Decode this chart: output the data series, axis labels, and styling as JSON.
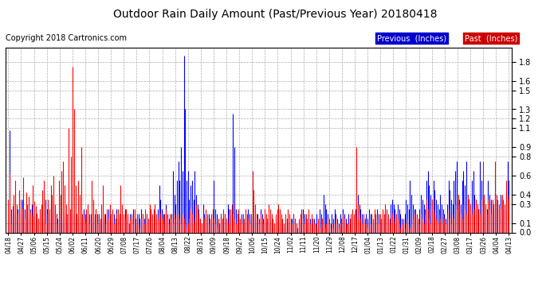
{
  "title": "Outdoor Rain Daily Amount (Past/Previous Year) 20180418",
  "copyright": "Copyright 2018 Cartronics.com",
  "legend_previous": "Previous  (Inches)",
  "legend_past": "Past  (Inches)",
  "line_previous_color": "#0000FF",
  "line_past_color": "#FF0000",
  "background_color": "#FFFFFF",
  "plot_bg_color": "#FFFFFF",
  "grid_color": "#999999",
  "yticks": [
    0.0,
    0.1,
    0.3,
    0.4,
    0.6,
    0.8,
    0.9,
    1.1,
    1.2,
    1.3,
    1.5,
    1.6,
    1.8
  ],
  "ylim": [
    0.0,
    1.95
  ],
  "xtick_labels": [
    "04/18",
    "04/27",
    "05/06",
    "05/15",
    "05/24",
    "06/02",
    "06/11",
    "06/20",
    "06/29",
    "07/08",
    "07/17",
    "07/26",
    "08/04",
    "08/13",
    "08/22",
    "08/31",
    "09/09",
    "09/18",
    "09/27",
    "10/06",
    "10/15",
    "10/24",
    "11/02",
    "11/11",
    "11/20",
    "11/29",
    "12/08",
    "12/17",
    "01/04",
    "01/13",
    "01/22",
    "01/31",
    "02/09",
    "02/18",
    "02/27",
    "03/08",
    "03/17",
    "03/26",
    "04/04",
    "04/13"
  ],
  "past_data": [
    0.35,
    0.62,
    0.1,
    0.28,
    0.4,
    0.55,
    0.3,
    0.2,
    0.45,
    0.35,
    0.25,
    0.58,
    0.15,
    0.42,
    0.3,
    0.38,
    0.22,
    0.18,
    0.5,
    0.33,
    0.28,
    0.2,
    0.15,
    0.25,
    0.3,
    0.45,
    0.55,
    0.1,
    0.2,
    0.35,
    0.25,
    0.5,
    0.4,
    0.6,
    0.3,
    0.2,
    0.1,
    0.55,
    0.4,
    0.65,
    0.75,
    0.5,
    0.3,
    0.2,
    1.1,
    0.25,
    0.8,
    1.75,
    1.3,
    0.5,
    0.2,
    0.55,
    0.4,
    0.9,
    0.2,
    0.15,
    0.1,
    0.25,
    0.3,
    0.1,
    0.2,
    0.55,
    0.35,
    0.2,
    0.25,
    0.1,
    0.2,
    0.15,
    0.3,
    0.5,
    0.2,
    0.1,
    0.25,
    0.15,
    0.3,
    0.2,
    0.25,
    0.1,
    0.15,
    0.2,
    0.25,
    0.2,
    0.5,
    0.3,
    0.2,
    0.15,
    0.25,
    0.2,
    0.1,
    0.15,
    0.2,
    0.1,
    0.25,
    0.15,
    0.2,
    0.1,
    0.05,
    0.15,
    0.2,
    0.1,
    0.25,
    0.2,
    0.15,
    0.3,
    0.25,
    0.2,
    0.25,
    0.3,
    0.2,
    0.15,
    0.25,
    0.2,
    0.15,
    0.1,
    0.2,
    0.25,
    0.15,
    0.1,
    0.2,
    0.15,
    0.1,
    0.2,
    0.15,
    0.25,
    0.2,
    0.15,
    0.1,
    0.2,
    0.15,
    0.1,
    0.05,
    0.1,
    0.15,
    0.25,
    0.2,
    0.15,
    0.1,
    0.3,
    0.2,
    0.25,
    0.15,
    0.1,
    0.2,
    0.15,
    0.25,
    0.2,
    0.1,
    0.15,
    0.2,
    0.25,
    0.15,
    0.1,
    0.05,
    0.15,
    0.1,
    0.2,
    0.15,
    0.25,
    0.2,
    0.15,
    0.1,
    0.2,
    0.25,
    0.3,
    0.2,
    0.15,
    0.1,
    0.2,
    0.25,
    0.15,
    0.1,
    0.2,
    0.15,
    0.25,
    0.2,
    0.15,
    0.1,
    0.2,
    0.65,
    0.45,
    0.3,
    0.2,
    0.15,
    0.1,
    0.2,
    0.15,
    0.1,
    0.25,
    0.2,
    0.15,
    0.3,
    0.25,
    0.2,
    0.15,
    0.1,
    0.2,
    0.25,
    0.3,
    0.25,
    0.2,
    0.15,
    0.1,
    0.2,
    0.15,
    0.25,
    0.2,
    0.15,
    0.1,
    0.2,
    0.15,
    0.1,
    0.05,
    0.15,
    0.2,
    0.25,
    0.15,
    0.1,
    0.2,
    0.15,
    0.25,
    0.1,
    0.2,
    0.15,
    0.1,
    0.05,
    0.1,
    0.15,
    0.05,
    0.1,
    0.15,
    0.1,
    0.05,
    0.1,
    0.15,
    0.1,
    0.05,
    0.1,
    0.05,
    0.1,
    0.15,
    0.1,
    0.05,
    0.1,
    0.15,
    0.2,
    0.15,
    0.1,
    0.05,
    0.1,
    0.15,
    0.2,
    0.25,
    0.2,
    0.15,
    0.9,
    0.3,
    0.2,
    0.15,
    0.1,
    0.2,
    0.15,
    0.1,
    0.05,
    0.15,
    0.1,
    0.2,
    0.15,
    0.25,
    0.2,
    0.15,
    0.1,
    0.2,
    0.15,
    0.25,
    0.2,
    0.3,
    0.25,
    0.2,
    0.15,
    0.1,
    0.2,
    0.15,
    0.1,
    0.2,
    0.15,
    0.1,
    0.05,
    0.1,
    0.15,
    0.05,
    0.1,
    0.15,
    0.1,
    0.05,
    0.1,
    0.15,
    0.2,
    0.25,
    0.2,
    0.15,
    0.1,
    0.2,
    0.15,
    0.1,
    0.2,
    0.35,
    0.25,
    0.15,
    0.1,
    0.35,
    0.25,
    0.2,
    0.15,
    0.1,
    0.2,
    0.15,
    0.1,
    0.2,
    0.15,
    0.1,
    0.2,
    0.25,
    0.15,
    0.1,
    0.2,
    0.15,
    0.3,
    0.25,
    0.4,
    0.3,
    0.2,
    0.15,
    0.3,
    0.25,
    0.2,
    0.4,
    0.35,
    0.3,
    0.2,
    0.35,
    0.25,
    0.35,
    0.3,
    0.25,
    0.2,
    0.35,
    0.75,
    0.4,
    0.3,
    0.2,
    0.35,
    0.25,
    0.2,
    0.35,
    0.3,
    0.75,
    0.4,
    0.35,
    0.3,
    0.25,
    0.4,
    0.35,
    0.3,
    0.55,
    0.4,
    0.35
  ],
  "previous_data": [
    0.15,
    1.08,
    0.25,
    0.1,
    0.3,
    0.2,
    0.15,
    0.25,
    0.1,
    0.2,
    0.35,
    0.15,
    0.25,
    0.1,
    0.2,
    0.15,
    0.25,
    0.3,
    0.2,
    0.15,
    0.1,
    0.2,
    0.15,
    0.25,
    0.2,
    0.15,
    0.1,
    0.35,
    0.25,
    0.2,
    0.15,
    0.1,
    0.2,
    0.3,
    0.25,
    0.2,
    0.15,
    0.1,
    0.2,
    0.15,
    0.1,
    0.2,
    0.15,
    0.1,
    0.2,
    0.15,
    0.25,
    0.2,
    0.15,
    0.1,
    0.2,
    0.15,
    0.1,
    0.2,
    0.15,
    0.25,
    0.2,
    0.15,
    0.1,
    0.2,
    0.15,
    0.1,
    0.2,
    0.15,
    0.25,
    0.2,
    0.15,
    0.1,
    0.2,
    0.15,
    0.1,
    0.2,
    0.15,
    0.25,
    0.2,
    0.15,
    0.1,
    0.2,
    0.15,
    0.25,
    0.2,
    0.15,
    0.1,
    0.2,
    0.15,
    0.25,
    0.2,
    0.15,
    0.1,
    0.2,
    0.15,
    0.25,
    0.2,
    0.15,
    0.1,
    0.2,
    0.15,
    0.25,
    0.2,
    0.15,
    0.1,
    0.2,
    0.15,
    0.25,
    0.2,
    0.15,
    0.1,
    0.2,
    0.15,
    0.25,
    0.5,
    0.35,
    0.25,
    0.2,
    0.15,
    0.3,
    0.2,
    0.15,
    0.1,
    0.2,
    0.65,
    0.4,
    0.3,
    0.55,
    0.75,
    0.55,
    0.9,
    0.65,
    1.87,
    1.3,
    0.55,
    0.65,
    0.35,
    0.5,
    0.55,
    0.35,
    0.65,
    0.4,
    0.3,
    0.2,
    0.15,
    0.1,
    0.3,
    0.2,
    0.15,
    0.1,
    0.2,
    0.15,
    0.1,
    0.2,
    0.55,
    0.25,
    0.2,
    0.15,
    0.1,
    0.2,
    0.15,
    0.1,
    0.2,
    0.15,
    0.3,
    0.25,
    0.2,
    0.15,
    1.25,
    0.9,
    0.25,
    0.2,
    0.15,
    0.1,
    0.2,
    0.15,
    0.1,
    0.2,
    0.15,
    0.25,
    0.2,
    0.15,
    0.1,
    0.2,
    0.15,
    0.1,
    0.2,
    0.15,
    0.25,
    0.2,
    0.15,
    0.1,
    0.2,
    0.15,
    0.1,
    0.15,
    0.1,
    0.05,
    0.1,
    0.15,
    0.1,
    0.05,
    0.1,
    0.15,
    0.1,
    0.05,
    0.1,
    0.15,
    0.1,
    0.05,
    0.1,
    0.15,
    0.2,
    0.15,
    0.1,
    0.05,
    0.1,
    0.15,
    0.2,
    0.25,
    0.2,
    0.15,
    0.1,
    0.2,
    0.15,
    0.1,
    0.05,
    0.15,
    0.1,
    0.2,
    0.15,
    0.25,
    0.2,
    0.15,
    0.4,
    0.3,
    0.25,
    0.2,
    0.15,
    0.1,
    0.2,
    0.15,
    0.25,
    0.2,
    0.15,
    0.1,
    0.2,
    0.15,
    0.25,
    0.2,
    0.15,
    0.1,
    0.2,
    0.15,
    0.1,
    0.2,
    0.15,
    0.25,
    0.2,
    0.4,
    0.3,
    0.25,
    0.2,
    0.15,
    0.1,
    0.2,
    0.15,
    0.25,
    0.2,
    0.15,
    0.1,
    0.2,
    0.15,
    0.25,
    0.2,
    0.15,
    0.1,
    0.2,
    0.15,
    0.25,
    0.2,
    0.15,
    0.1,
    0.3,
    0.35,
    0.3,
    0.25,
    0.2,
    0.3,
    0.25,
    0.2,
    0.15,
    0.1,
    0.2,
    0.35,
    0.3,
    0.25,
    0.55,
    0.4,
    0.3,
    0.25,
    0.2,
    0.15,
    0.1,
    0.25,
    0.4,
    0.35,
    0.3,
    0.25,
    0.55,
    0.65,
    0.5,
    0.4,
    0.35,
    0.55,
    0.45,
    0.35,
    0.3,
    0.25,
    0.4,
    0.3,
    0.25,
    0.2,
    0.15,
    0.3,
    0.55,
    0.45,
    0.35,
    0.3,
    0.55,
    0.65,
    0.75,
    0.4,
    0.35,
    0.3,
    0.55,
    0.65,
    0.5,
    0.75,
    0.4,
    0.35,
    0.3,
    0.55,
    0.65,
    0.4,
    0.35,
    0.3,
    0.25,
    0.75,
    0.55,
    0.4,
    0.35,
    0.3,
    0.25,
    0.55,
    0.4,
    0.35,
    0.3,
    0.25,
    0.4,
    0.35,
    0.3,
    0.25,
    0.4,
    0.35,
    0.3,
    0.25,
    0.4,
    0.75,
    0.55
  ]
}
